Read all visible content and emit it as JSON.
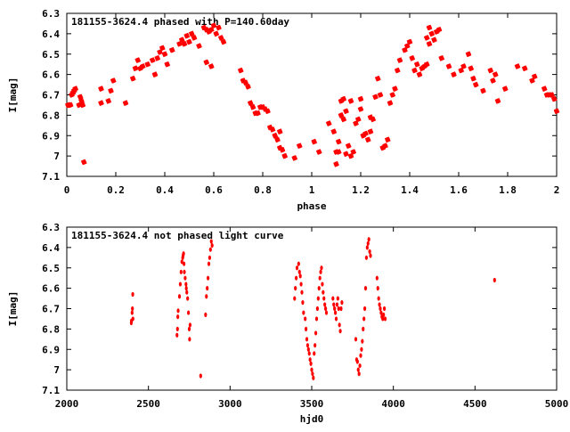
{
  "chart_data": [
    {
      "type": "scatter",
      "title": "181155-3624.4 phased with P=140.60day",
      "xlabel": "phase",
      "ylabel": "I[mag]",
      "xlim": [
        0,
        2
      ],
      "ylim": [
        7.1,
        6.3
      ],
      "y_inverted": true,
      "grid": false,
      "legend": "none",
      "marker_color": "#ff0000",
      "x_ticks": [
        "0",
        "0.2",
        "0.4",
        "0.6",
        "0.8",
        "1",
        "1.2",
        "1.4",
        "1.6",
        "1.8",
        "2"
      ],
      "y_ticks": [
        "6.3",
        "6.4",
        "6.5",
        "6.6",
        "6.7",
        "6.8",
        "6.9",
        "7",
        "7.1"
      ],
      "series": [
        {
          "x": [
            0.005,
            0.01,
            0.015,
            0.02,
            0.025,
            0.03,
            0.035,
            0.05,
            0.055,
            0.06,
            0.065,
            0.07,
            0.14,
            0.14,
            0.17,
            0.18,
            0.19,
            0.24,
            0.27,
            0.28,
            0.29,
            0.3,
            0.31,
            0.33,
            0.35,
            0.36,
            0.37,
            0.38,
            0.39,
            0.4,
            0.41,
            0.43,
            0.46,
            0.47,
            0.48,
            0.49,
            0.5,
            0.51,
            0.52,
            0.54,
            0.56,
            0.57,
            0.58,
            0.59,
            0.6,
            0.61,
            0.62,
            0.63,
            0.64,
            0.57,
            0.59,
            0.71,
            0.72,
            0.73,
            0.74,
            0.75,
            0.76,
            0.77,
            0.78,
            0.79,
            0.8,
            0.81,
            0.82,
            0.83,
            0.84,
            0.85,
            0.86,
            0.87,
            0.88,
            0.89,
            0.87,
            0.93,
            0.95,
            1.01,
            1.03,
            1.07,
            1.09,
            1.1,
            1.1,
            1.11,
            1.11,
            1.12,
            1.12,
            1.13,
            1.13,
            1.14,
            1.14,
            1.15,
            1.16,
            1.16,
            1.17,
            1.18,
            1.19,
            1.2,
            1.2,
            1.21,
            1.22,
            1.23,
            1.24,
            1.24,
            1.25,
            1.26,
            1.27,
            1.28,
            1.29,
            1.3,
            1.31,
            1.32,
            1.33,
            1.34,
            1.35,
            1.36,
            1.38,
            1.39,
            1.4,
            1.41,
            1.42,
            1.43,
            1.44,
            1.45,
            1.46,
            1.47,
            1.47,
            1.48,
            1.48,
            1.49,
            1.5,
            1.51,
            1.52,
            1.53,
            1.56,
            1.58,
            1.61,
            1.62,
            1.64,
            1.65,
            1.66,
            1.67,
            1.7,
            1.73,
            1.74,
            1.75,
            1.76,
            1.79,
            1.84,
            1.87,
            1.9,
            1.91,
            1.95,
            1.96,
            1.97,
            1.98,
            1.99,
            2.0
          ],
          "y": [
            6.75,
            6.75,
            6.75,
            6.7,
            6.69,
            6.68,
            6.67,
            6.75,
            6.71,
            6.73,
            6.75,
            7.03,
            6.74,
            6.67,
            6.73,
            6.68,
            6.63,
            6.74,
            6.62,
            6.57,
            6.53,
            6.57,
            6.56,
            6.55,
            6.53,
            6.6,
            6.52,
            6.49,
            6.47,
            6.5,
            6.55,
            6.48,
            6.45,
            6.43,
            6.45,
            6.41,
            6.44,
            6.4,
            6.42,
            6.46,
            6.37,
            6.38,
            6.39,
            6.38,
            6.36,
            6.4,
            6.37,
            6.42,
            6.44,
            6.54,
            6.56,
            6.58,
            6.63,
            6.64,
            6.66,
            6.74,
            6.76,
            6.79,
            6.79,
            6.76,
            6.76,
            6.77,
            6.78,
            6.86,
            6.87,
            6.9,
            6.92,
            6.96,
            6.97,
            7.0,
            6.88,
            7.01,
            6.95,
            6.93,
            6.98,
            6.84,
            6.88,
            7.04,
            6.98,
            6.98,
            6.93,
            6.8,
            6.73,
            6.82,
            6.72,
            6.99,
            6.78,
            6.95,
            7.0,
            6.73,
            6.98,
            6.84,
            6.82,
            6.77,
            6.72,
            6.9,
            6.89,
            6.92,
            6.88,
            6.81,
            6.82,
            6.71,
            6.62,
            6.7,
            6.96,
            6.95,
            6.92,
            6.74,
            6.7,
            6.67,
            6.58,
            6.53,
            6.48,
            6.46,
            6.44,
            6.52,
            6.58,
            6.55,
            6.6,
            6.57,
            6.56,
            6.55,
            6.42,
            6.45,
            6.37,
            6.4,
            6.43,
            6.39,
            6.38,
            6.52,
            6.56,
            6.6,
            6.58,
            6.56,
            6.5,
            6.57,
            6.62,
            6.65,
            6.68,
            6.58,
            6.63,
            6.6,
            6.73,
            6.67,
            6.56,
            6.57,
            6.63,
            6.61,
            6.67,
            6.7,
            6.7,
            6.7,
            6.72,
            6.78
          ],
          "marker": "star"
        }
      ]
    },
    {
      "type": "scatter",
      "title": "181155-3624.4 not phased light curve",
      "xlabel": "hjd0",
      "ylabel": "I[mag]",
      "xlim": [
        2000,
        5000
      ],
      "ylim": [
        7.1,
        6.3
      ],
      "y_inverted": true,
      "grid": false,
      "legend": "none",
      "marker_color": "#ff0000",
      "x_ticks": [
        "2000",
        "2500",
        "3000",
        "3500",
        "4000",
        "4500",
        "5000"
      ],
      "y_ticks": [
        "6.3",
        "6.4",
        "6.5",
        "6.6",
        "6.7",
        "6.8",
        "6.9",
        "7",
        "7.1"
      ],
      "series": [
        {
          "x": [
            2395,
            2396,
            2400,
            2402,
            2404,
            2405,
            2675,
            2678,
            2680,
            2682,
            2690,
            2695,
            2700,
            2705,
            2710,
            2712,
            2715,
            2718,
            2720,
            2725,
            2730,
            2732,
            2735,
            2740,
            2745,
            2750,
            2752,
            2755,
            2820,
            2850,
            2855,
            2860,
            2865,
            2870,
            2875,
            2880,
            2885,
            2890,
            3395,
            3400,
            3405,
            3410,
            3420,
            3425,
            3430,
            3435,
            3440,
            3445,
            3450,
            3460,
            3465,
            3470,
            3475,
            3480,
            3485,
            3490,
            3495,
            3500,
            3505,
            3510,
            3515,
            3520,
            3525,
            3530,
            3535,
            3540,
            3545,
            3550,
            3555,
            3560,
            3565,
            3570,
            3575,
            3580,
            3585,
            3590,
            3630,
            3635,
            3640,
            3645,
            3650,
            3655,
            3660,
            3665,
            3670,
            3675,
            3680,
            3685,
            3770,
            3775,
            3780,
            3785,
            3790,
            3795,
            3800,
            3805,
            3810,
            3815,
            3820,
            3825,
            3830,
            3835,
            3840,
            3845,
            3850,
            3855,
            3860,
            3900,
            3905,
            3910,
            3915,
            3920,
            3925,
            3930,
            3935,
            3940,
            3945,
            3950,
            4620
          ],
          "y": [
            6.77,
            6.76,
            6.72,
            6.7,
            6.63,
            6.75,
            6.83,
            6.8,
            6.74,
            6.71,
            6.64,
            6.58,
            6.52,
            6.47,
            6.45,
            6.44,
            6.43,
            6.48,
            6.52,
            6.55,
            6.58,
            6.6,
            6.62,
            6.65,
            6.72,
            6.8,
            6.85,
            6.78,
            7.03,
            6.73,
            6.64,
            6.6,
            6.55,
            6.48,
            6.45,
            6.41,
            6.37,
            6.39,
            6.65,
            6.6,
            6.55,
            6.5,
            6.48,
            6.52,
            6.54,
            6.58,
            6.62,
            6.67,
            6.72,
            6.75,
            6.8,
            6.85,
            6.88,
            6.9,
            6.92,
            6.95,
            6.97,
            7.0,
            7.02,
            7.04,
            6.92,
            6.88,
            6.82,
            6.75,
            6.7,
            6.65,
            6.6,
            6.55,
            6.52,
            6.5,
            6.58,
            6.62,
            6.65,
            6.68,
            6.7,
            6.72,
            6.65,
            6.68,
            6.7,
            6.72,
            6.75,
            6.68,
            6.65,
            6.7,
            6.78,
            6.81,
            6.7,
            6.67,
            6.85,
            6.95,
            6.96,
            7.0,
            7.02,
            6.98,
            6.93,
            6.9,
            6.86,
            6.8,
            6.75,
            6.7,
            6.6,
            6.45,
            6.4,
            6.38,
            6.36,
            6.42,
            6.44,
            6.55,
            6.6,
            6.65,
            6.68,
            6.7,
            6.72,
            6.74,
            6.75,
            6.73,
            6.7,
            6.75,
            6.56
          ],
          "marker": "diamond"
        }
      ]
    }
  ]
}
